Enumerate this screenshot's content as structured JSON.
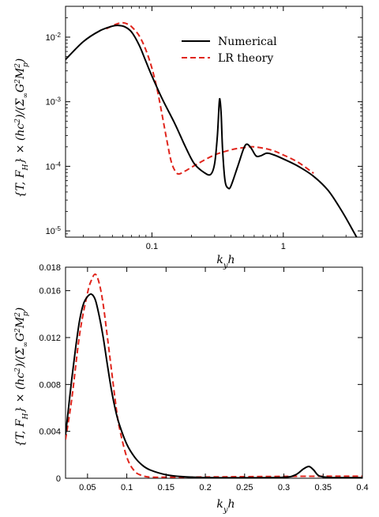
{
  "chart_data": [
    {
      "type": "line",
      "xscale": "log",
      "yscale": "log",
      "xlabel": "k_y h",
      "ylabel": "{T, F_H} × (hc²)/(Σ_∞ G² M_p²)",
      "xlim": [
        0.022,
        4.0
      ],
      "ylim": [
        8e-06,
        0.03
      ],
      "xticks": [
        {
          "value": 0.1,
          "label": "0.1"
        },
        {
          "value": 1,
          "label": "1"
        }
      ],
      "yticks": [
        {
          "value": 1e-05,
          "base": "10",
          "exp": "-5"
        },
        {
          "value": 0.0001,
          "base": "10",
          "exp": "-4"
        },
        {
          "value": 0.001,
          "base": "10",
          "exp": "-3"
        },
        {
          "value": 0.01,
          "base": "10",
          "exp": "-2"
        }
      ],
      "legend_position": "top-right",
      "series": [
        {
          "name": "Numerical",
          "color": "#000000",
          "style": "solid",
          "points": [
            [
              0.022,
              0.0045
            ],
            [
              0.03,
              0.0085
            ],
            [
              0.04,
              0.0125
            ],
            [
              0.05,
              0.0148
            ],
            [
              0.055,
              0.0152
            ],
            [
              0.062,
              0.0145
            ],
            [
              0.07,
              0.012
            ],
            [
              0.08,
              0.0075
            ],
            [
              0.09,
              0.0042
            ],
            [
              0.1,
              0.0025
            ],
            [
              0.12,
              0.0011
            ],
            [
              0.15,
              0.00045
            ],
            [
              0.18,
              0.0002
            ],
            [
              0.21,
              0.00011
            ],
            [
              0.25,
              8e-05
            ],
            [
              0.28,
              7.5e-05
            ],
            [
              0.3,
              0.00011
            ],
            [
              0.315,
              0.0003
            ],
            [
              0.325,
              0.00095
            ],
            [
              0.33,
              0.00105
            ],
            [
              0.337,
              0.0006
            ],
            [
              0.345,
              0.00018
            ],
            [
              0.36,
              6e-05
            ],
            [
              0.38,
              4.6e-05
            ],
            [
              0.4,
              5e-05
            ],
            [
              0.45,
              0.0001
            ],
            [
              0.5,
              0.00019
            ],
            [
              0.53,
              0.00022
            ],
            [
              0.57,
              0.00019
            ],
            [
              0.62,
              0.000145
            ],
            [
              0.67,
              0.000145
            ],
            [
              0.75,
              0.00016
            ],
            [
              0.85,
              0.00015
            ],
            [
              1.0,
              0.00013
            ],
            [
              1.3,
              0.0001
            ],
            [
              1.7,
              7e-05
            ],
            [
              2.2,
              4.2e-05
            ],
            [
              2.8,
              2e-05
            ],
            [
              3.4,
              1e-05
            ],
            [
              3.9,
              6e-06
            ]
          ]
        },
        {
          "name": "LR theory",
          "color": "#e0251c",
          "style": "dashed",
          "points": [
            [
              0.045,
              0.0135
            ],
            [
              0.05,
              0.015
            ],
            [
              0.055,
              0.0162
            ],
            [
              0.06,
              0.0167
            ],
            [
              0.065,
              0.016
            ],
            [
              0.07,
              0.0145
            ],
            [
              0.08,
              0.0105
            ],
            [
              0.09,
              0.0063
            ],
            [
              0.1,
              0.0033
            ],
            [
              0.11,
              0.0015
            ],
            [
              0.12,
              0.0006
            ],
            [
              0.13,
              0.00025
            ],
            [
              0.14,
              0.00012
            ],
            [
              0.15,
              8.5e-05
            ],
            [
              0.16,
              7.6e-05
            ],
            [
              0.18,
              8.5e-05
            ],
            [
              0.22,
              0.000108
            ],
            [
              0.3,
              0.00015
            ],
            [
              0.4,
              0.00018
            ],
            [
              0.5,
              0.000195
            ],
            [
              0.6,
              0.0002
            ],
            [
              0.8,
              0.00018
            ],
            [
              1.0,
              0.00015
            ],
            [
              1.3,
              0.000115
            ],
            [
              1.7,
              7.8e-05
            ]
          ]
        }
      ]
    },
    {
      "type": "line",
      "xscale": "linear",
      "yscale": "linear",
      "xlabel": "k_y h",
      "ylabel": "{T, F_H} × (hc²)/(Σ_∞ G² M_p²)",
      "xlim": [
        0.022,
        0.4
      ],
      "ylim": [
        0,
        0.018
      ],
      "xticks": [
        {
          "value": 0.05,
          "label": "0.05"
        },
        {
          "value": 0.1,
          "label": "0.1"
        },
        {
          "value": 0.15,
          "label": "0.15"
        },
        {
          "value": 0.2,
          "label": "0.2"
        },
        {
          "value": 0.25,
          "label": "0.25"
        },
        {
          "value": 0.3,
          "label": "0.3"
        },
        {
          "value": 0.35,
          "label": "0.35"
        },
        {
          "value": 0.4,
          "label": "0.4"
        }
      ],
      "yticks": [
        {
          "value": 0,
          "label": "0"
        },
        {
          "value": 0.004,
          "label": "0.004"
        },
        {
          "value": 0.008,
          "label": "0.008"
        },
        {
          "value": 0.012,
          "label": "0.012"
        },
        {
          "value": 0.016,
          "label": "0.016"
        },
        {
          "value": 0.018,
          "label": "0.018"
        }
      ],
      "series": [
        {
          "name": "Numerical",
          "color": "#000000",
          "style": "solid",
          "points": [
            [
              0.022,
              0.0037
            ],
            [
              0.025,
              0.0055
            ],
            [
              0.03,
              0.0085
            ],
            [
              0.035,
              0.0112
            ],
            [
              0.04,
              0.0135
            ],
            [
              0.045,
              0.0149
            ],
            [
              0.05,
              0.0155
            ],
            [
              0.055,
              0.0157
            ],
            [
              0.06,
              0.0152
            ],
            [
              0.065,
              0.0138
            ],
            [
              0.07,
              0.012
            ],
            [
              0.075,
              0.0098
            ],
            [
              0.08,
              0.0077
            ],
            [
              0.085,
              0.006
            ],
            [
              0.09,
              0.0047
            ],
            [
              0.1,
              0.0029
            ],
            [
              0.11,
              0.0018
            ],
            [
              0.12,
              0.0011
            ],
            [
              0.13,
              0.0007
            ],
            [
              0.15,
              0.0003
            ],
            [
              0.17,
              0.00014
            ],
            [
              0.2,
              6e-05
            ],
            [
              0.25,
              4e-05
            ],
            [
              0.3,
              8e-05
            ],
            [
              0.315,
              0.0003
            ],
            [
              0.325,
              0.0008
            ],
            [
              0.332,
              0.001
            ],
            [
              0.338,
              0.0007
            ],
            [
              0.345,
              0.0002
            ],
            [
              0.36,
              6e-05
            ],
            [
              0.38,
              5e-05
            ],
            [
              0.4,
              5e-05
            ]
          ]
        },
        {
          "name": "LR theory",
          "color": "#e0251c",
          "style": "dashed",
          "points": [
            [
              0.022,
              0.0033
            ],
            [
              0.03,
              0.0068
            ],
            [
              0.04,
              0.0123
            ],
            [
              0.05,
              0.0158
            ],
            [
              0.055,
              0.0169
            ],
            [
              0.06,
              0.0174
            ],
            [
              0.065,
              0.0166
            ],
            [
              0.07,
              0.0148
            ],
            [
              0.075,
              0.0122
            ],
            [
              0.08,
              0.0095
            ],
            [
              0.085,
              0.0068
            ],
            [
              0.09,
              0.0045
            ],
            [
              0.1,
              0.0018
            ],
            [
              0.11,
              0.0006
            ],
            [
              0.12,
              0.00022
            ],
            [
              0.13,
              0.0001
            ],
            [
              0.15,
              9e-05
            ],
            [
              0.2,
              0.00011
            ],
            [
              0.3,
              0.00016
            ],
            [
              0.4,
              0.00018
            ]
          ]
        }
      ]
    }
  ]
}
